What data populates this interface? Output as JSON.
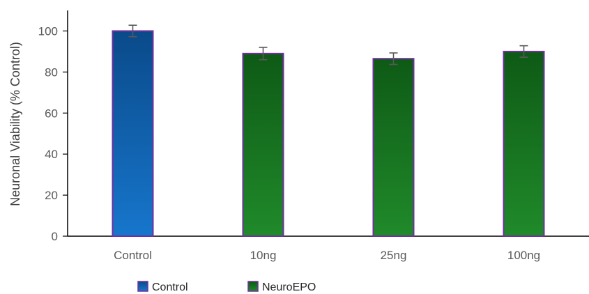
{
  "chart_data": {
    "type": "bar",
    "ylabel": "Neuronal Viability (% Control)",
    "xlabel": "",
    "categories": [
      "Control",
      "10ng",
      "25ng",
      "100ng"
    ],
    "values": [
      100,
      89,
      86.5,
      90
    ],
    "error": [
      2.8,
      3.0,
      2.8,
      2.8
    ],
    "group": [
      "Control",
      "NeuroEPO",
      "NeuroEPO",
      "NeuroEPO"
    ],
    "ylim": [
      0,
      110
    ],
    "yticks": [
      0,
      20,
      40,
      60,
      80,
      100
    ],
    "legend": [
      {
        "name": "Control",
        "color_top": "#0a4a8a",
        "color_bottom": "#1776cc"
      },
      {
        "name": "NeuroEPO",
        "color_top": "#0e5a16",
        "color_bottom": "#208a2a"
      }
    ],
    "bar_border_color": "#7030a0",
    "legend_position": "bottom",
    "grid": false
  }
}
